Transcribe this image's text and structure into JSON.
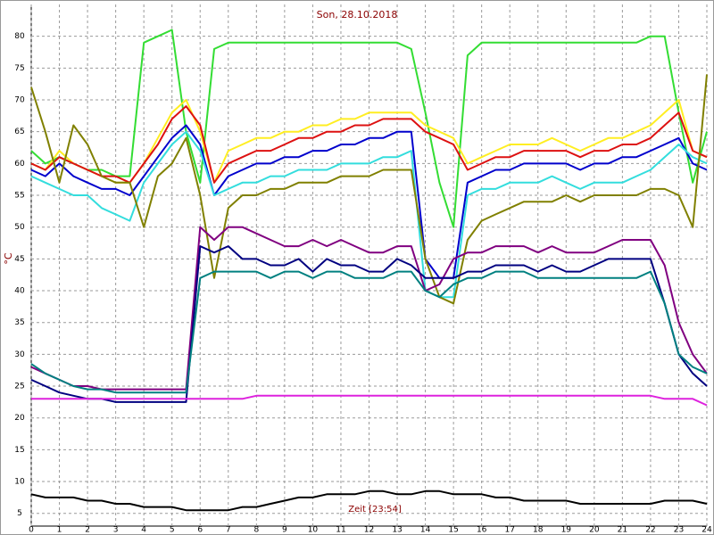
{
  "chart_data": {
    "type": "line",
    "title": "Son, 28.10.2018",
    "y_label": "°C",
    "x_label": "Zeit [23:54]",
    "xlim": [
      0,
      24
    ],
    "xticks": [
      0,
      1,
      2,
      3,
      4,
      5,
      6,
      7,
      8,
      9,
      10,
      11,
      12,
      13,
      14,
      15,
      16,
      17,
      18,
      19,
      20,
      21,
      22,
      23,
      24
    ],
    "ylim": [
      3,
      85
    ],
    "yticks": [
      5,
      10,
      15,
      20,
      25,
      30,
      35,
      40,
      45,
      50,
      55,
      60,
      65,
      70,
      75,
      80
    ],
    "grid": true,
    "x": [
      0,
      0.5,
      1,
      1.5,
      2,
      2.5,
      3,
      3.5,
      4,
      4.5,
      5,
      5.5,
      6,
      6.5,
      7,
      7.5,
      8,
      8.5,
      9,
      9.5,
      10,
      10.5,
      11,
      11.5,
      12,
      12.5,
      13,
      13.5,
      14,
      14.5,
      15,
      15.5,
      16,
      16.5,
      17,
      17.5,
      18,
      18.5,
      19,
      19.5,
      20,
      20.5,
      21,
      21.5,
      22,
      22.5,
      23,
      23.5,
      24
    ],
    "series": [
      {
        "color": "#33dd33",
        "values": [
          62,
          60,
          61,
          60,
          59,
          59,
          58,
          58,
          79,
          80,
          81,
          65,
          57,
          78,
          79,
          79,
          79,
          79,
          79,
          79,
          79,
          79,
          79,
          79,
          79,
          79,
          79,
          78,
          68,
          57,
          50,
          77,
          79,
          79,
          79,
          79,
          79,
          79,
          79,
          79,
          79,
          79,
          79,
          79,
          80,
          80,
          68,
          57,
          65
        ]
      },
      {
        "color": "#ffee22",
        "values": [
          60,
          59,
          62,
          60,
          59,
          58,
          57,
          57,
          60,
          64,
          68,
          70,
          65,
          57,
          62,
          63,
          64,
          64,
          65,
          65,
          66,
          66,
          67,
          67,
          68,
          68,
          68,
          68,
          66,
          65,
          64,
          60,
          61,
          62,
          63,
          63,
          63,
          64,
          63,
          62,
          63,
          64,
          64,
          65,
          66,
          68,
          70,
          62,
          61
        ]
      },
      {
        "color": "#dd1111",
        "values": [
          60,
          59,
          61,
          60,
          59,
          58,
          58,
          57,
          60,
          63,
          67,
          69,
          66,
          57,
          60,
          61,
          62,
          62,
          63,
          64,
          64,
          65,
          65,
          66,
          66,
          67,
          67,
          67,
          65,
          64,
          63,
          59,
          60,
          61,
          61,
          62,
          62,
          62,
          62,
          61,
          62,
          62,
          63,
          63,
          64,
          66,
          68,
          62,
          61
        ]
      },
      {
        "color": "#0000cc",
        "values": [
          59,
          58,
          60,
          58,
          57,
          56,
          56,
          55,
          58,
          61,
          64,
          66,
          63,
          55,
          58,
          59,
          60,
          60,
          61,
          61,
          62,
          62,
          63,
          63,
          64,
          64,
          65,
          65,
          45,
          42,
          42,
          57,
          58,
          59,
          59,
          60,
          60,
          60,
          60,
          59,
          60,
          60,
          61,
          61,
          62,
          63,
          64,
          60,
          59
        ]
      },
      {
        "color": "#33dddd",
        "values": [
          58,
          57,
          56,
          55,
          55,
          53,
          52,
          51,
          57,
          60,
          63,
          65,
          62,
          55,
          56,
          57,
          57,
          58,
          58,
          59,
          59,
          59,
          60,
          60,
          60,
          61,
          61,
          62,
          40,
          39,
          39,
          55,
          56,
          56,
          57,
          57,
          57,
          58,
          57,
          56,
          57,
          57,
          57,
          58,
          59,
          61,
          63,
          61,
          60
        ]
      },
      {
        "color": "#808000",
        "values": [
          72,
          65,
          57,
          66,
          63,
          58,
          57,
          57,
          50,
          58,
          60,
          64,
          55,
          42,
          53,
          55,
          55,
          56,
          56,
          57,
          57,
          57,
          58,
          58,
          58,
          59,
          59,
          59,
          45,
          39,
          38,
          48,
          51,
          52,
          53,
          54,
          54,
          54,
          55,
          54,
          55,
          55,
          55,
          55,
          56,
          56,
          55,
          50,
          74
        ]
      },
      {
        "color": "#800080",
        "values": [
          28,
          27,
          26,
          25,
          25,
          24.5,
          24.5,
          24.5,
          24.5,
          24.5,
          24.5,
          24.5,
          50,
          48,
          50,
          50,
          49,
          48,
          47,
          47,
          48,
          47,
          48,
          47,
          46,
          46,
          47,
          47,
          40,
          41,
          45,
          46,
          46,
          47,
          47,
          47,
          46,
          47,
          46,
          46,
          46,
          47,
          48,
          48,
          48,
          44,
          35,
          30,
          27
        ]
      },
      {
        "color": "#000080",
        "values": [
          26,
          25,
          24,
          23.5,
          23,
          23,
          22.5,
          22.5,
          22.5,
          22.5,
          22.5,
          22.5,
          47,
          46,
          47,
          45,
          45,
          44,
          44,
          45,
          43,
          45,
          44,
          44,
          43,
          43,
          45,
          44,
          42,
          42,
          42,
          43,
          43,
          44,
          44,
          44,
          43,
          44,
          43,
          43,
          44,
          45,
          45,
          45,
          45,
          38,
          30,
          27,
          25
        ]
      },
      {
        "color": "#008080",
        "values": [
          28.5,
          27,
          26,
          25,
          24.5,
          24.5,
          24,
          24,
          24,
          24,
          24,
          24,
          42,
          43,
          43,
          43,
          43,
          42,
          43,
          43,
          42,
          43,
          43,
          42,
          42,
          42,
          43,
          43,
          40,
          39,
          41,
          42,
          42,
          43,
          43,
          43,
          42,
          42,
          42,
          42,
          42,
          42,
          42,
          42,
          43,
          38,
          30,
          28,
          27
        ]
      },
      {
        "color": "#dd22dd",
        "values": [
          23,
          23,
          23,
          23,
          23,
          23,
          23,
          23,
          23,
          23,
          23,
          23,
          23,
          23,
          23,
          23,
          23.5,
          23.5,
          23.5,
          23.5,
          23.5,
          23.5,
          23.5,
          23.5,
          23.5,
          23.5,
          23.5,
          23.5,
          23.5,
          23.5,
          23.5,
          23.5,
          23.5,
          23.5,
          23.5,
          23.5,
          23.5,
          23.5,
          23.5,
          23.5,
          23.5,
          23.5,
          23.5,
          23.5,
          23.5,
          23,
          23,
          23,
          22
        ]
      },
      {
        "color": "#000000",
        "values": [
          8,
          7.5,
          7.5,
          7.5,
          7,
          7,
          6.5,
          6.5,
          6,
          6,
          6,
          5.5,
          5.5,
          5.5,
          5.5,
          6,
          6,
          6.5,
          7,
          7.5,
          7.5,
          8,
          8,
          8,
          8.5,
          8.5,
          8,
          8,
          8.5,
          8.5,
          8,
          8,
          8,
          7.5,
          7.5,
          7,
          7,
          7,
          7,
          6.5,
          6.5,
          6.5,
          6.5,
          6.5,
          6.5,
          7,
          7,
          7,
          6.5
        ]
      }
    ]
  }
}
